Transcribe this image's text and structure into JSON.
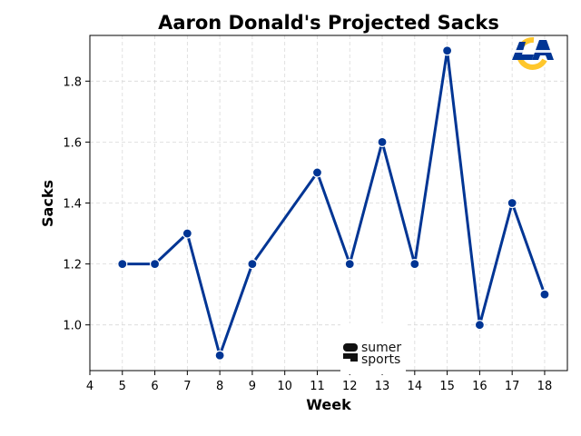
{
  "chart_data": {
    "type": "line",
    "title": "Aaron Donald's Projected Sacks",
    "xlabel": "Week",
    "ylabel": "Sacks",
    "xlim": [
      4,
      18.7
    ],
    "ylim": [
      0.85,
      1.95
    ],
    "xticks": [
      4,
      5,
      6,
      7,
      8,
      9,
      10,
      11,
      12,
      13,
      14,
      15,
      16,
      17,
      18
    ],
    "yticks": [
      1.0,
      1.2,
      1.4,
      1.6,
      1.8
    ],
    "grid": true,
    "series": [
      {
        "x": [
          5,
          6,
          7,
          8,
          9,
          11,
          12,
          13,
          14,
          15,
          16,
          17,
          18
        ],
        "values": [
          1.2,
          1.2,
          1.3,
          0.9,
          1.2,
          1.5,
          1.2,
          1.6,
          1.2,
          1.9,
          1.0,
          1.4,
          1.1
        ],
        "color": "#003594"
      }
    ]
  },
  "logo": {
    "name": "rams-logo",
    "colors": [
      "#003594",
      "#FFC72C"
    ]
  },
  "watermark": {
    "line1": "sumer",
    "line2": "sports"
  }
}
